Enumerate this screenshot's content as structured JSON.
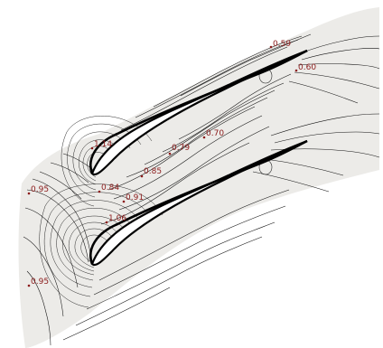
{
  "colors": {
    "domain_fill": "#ecebe8",
    "blade_fill": "#ffffff",
    "contour_line": "#111111",
    "annotation": "#8b1a1a"
  },
  "annotations": [
    {
      "id": "upper-te-a",
      "text": "0.59"
    },
    {
      "id": "upper-te-b",
      "text": "0.60"
    },
    {
      "id": "passage-a",
      "text": "0.70"
    },
    {
      "id": "passage-b",
      "text": "0.79"
    },
    {
      "id": "upper-le",
      "text": "1.14"
    },
    {
      "id": "passage-c",
      "text": "0.85"
    },
    {
      "id": "inlet-top",
      "text": "0.95"
    },
    {
      "id": "upper-le-near",
      "text": "0.84"
    },
    {
      "id": "passage-d",
      "text": "0.91"
    },
    {
      "id": "lower-le",
      "text": "1.06"
    },
    {
      "id": "inlet-bottom",
      "text": "0.95"
    }
  ]
}
